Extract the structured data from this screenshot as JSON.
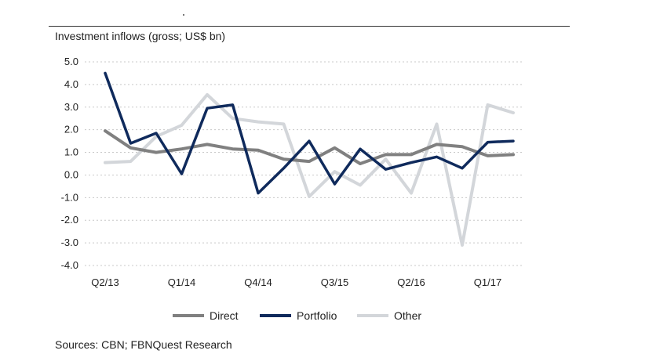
{
  "chart_data": {
    "type": "line",
    "title": "Investment inflows (gross; US$ bn)",
    "x": [
      "Q2/13",
      "Q3/13",
      "Q4/13",
      "Q1/14",
      "Q2/14",
      "Q3/14",
      "Q4/14",
      "Q1/15",
      "Q2/15",
      "Q3/15",
      "Q4/15",
      "Q1/16",
      "Q2/16",
      "Q3/16",
      "Q4/16",
      "Q1/17",
      "Q2/17"
    ],
    "x_tick_labels": [
      "Q2/13",
      "Q1/14",
      "Q4/14",
      "Q3/15",
      "Q2/16",
      "Q1/17"
    ],
    "ylim": [
      -4.0,
      5.0
    ],
    "y_ticks": [
      "5.0",
      "4.0",
      "3.0",
      "2.0",
      "1.0",
      "0.0",
      "-1.0",
      "-2.0",
      "-3.0",
      "-4.0"
    ],
    "grid": "horizontal dashed",
    "legend_position": "bottom",
    "series": [
      {
        "name": "Direct",
        "color": "#808080",
        "values": [
          1.95,
          1.2,
          1.0,
          1.15,
          1.35,
          1.15,
          1.1,
          0.7,
          0.6,
          1.2,
          0.5,
          0.9,
          0.9,
          1.35,
          1.25,
          0.85,
          0.9
        ]
      },
      {
        "name": "Portfolio",
        "color": "#0f2a5c",
        "values": [
          4.5,
          1.4,
          1.85,
          0.05,
          2.95,
          3.1,
          -0.8,
          0.3,
          1.5,
          -0.4,
          1.15,
          0.25,
          0.55,
          0.8,
          0.3,
          1.45,
          1.5
        ]
      },
      {
        "name": "Other",
        "color": "#d3d6da",
        "values": [
          0.55,
          0.6,
          1.7,
          2.2,
          3.55,
          2.5,
          2.35,
          2.25,
          -0.95,
          0.15,
          -0.45,
          0.7,
          -0.8,
          2.25,
          -3.1,
          3.1,
          2.75
        ]
      }
    ]
  },
  "source_note": "Sources: CBN; FBNQuest Research"
}
